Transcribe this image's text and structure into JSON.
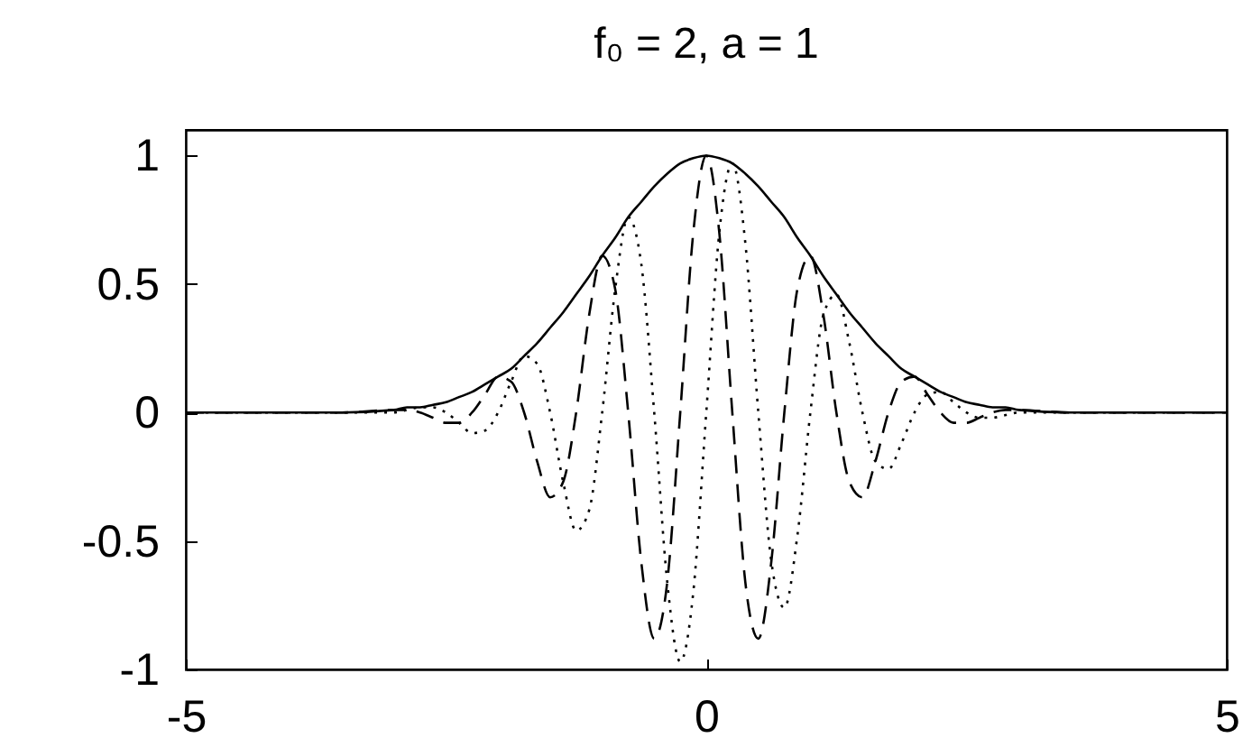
{
  "chart_data": {
    "type": "line",
    "title": "f₀ = 2, a = 1",
    "x": [
      -5,
      -4,
      -3.5,
      -3,
      -2.875,
      -2.75,
      -2.625,
      -2.5,
      -2.375,
      -2.25,
      -2.125,
      -2,
      -1.875,
      -1.75,
      -1.625,
      -1.5,
      -1.375,
      -1.25,
      -1.125,
      -1,
      -0.875,
      -0.75,
      -0.625,
      -0.5,
      -0.375,
      -0.25,
      -0.125,
      0,
      0.125,
      0.25,
      0.375,
      0.5,
      0.625,
      0.75,
      0.875,
      1,
      1.125,
      1.25,
      1.375,
      1.5,
      1.625,
      1.75,
      1.875,
      2,
      2.125,
      2.25,
      2.375,
      2.5,
      2.625,
      2.75,
      2.875,
      3,
      3.5,
      4,
      5
    ],
    "series": [
      {
        "color": "#000000",
        "line_style": "solid",
        "values": [
          0,
          0,
          0,
          0.01,
          0.02,
          0.02,
          0.03,
          0.04,
          0.06,
          0.08,
          0.11,
          0.14,
          0.17,
          0.22,
          0.27,
          0.33,
          0.39,
          0.46,
          0.53,
          0.61,
          0.68,
          0.76,
          0.82,
          0.88,
          0.93,
          0.97,
          0.99,
          1,
          0.99,
          0.97,
          0.93,
          0.88,
          0.82,
          0.76,
          0.68,
          0.61,
          0.53,
          0.46,
          0.39,
          0.33,
          0.27,
          0.22,
          0.17,
          0.14,
          0.11,
          0.08,
          0.06,
          0.04,
          0.03,
          0.02,
          0.02,
          0.01,
          0,
          0,
          0
        ]
      },
      {
        "color": "#000000",
        "line_style": "dashed",
        "values": [
          0,
          0,
          0,
          0.01,
          0.01,
          0,
          -0.02,
          -0.04,
          -0.04,
          0,
          0.07,
          0.14,
          0.12,
          0,
          -0.19,
          -0.33,
          -0.27,
          0,
          0.38,
          0.61,
          0.48,
          0,
          -0.58,
          -0.88,
          -0.66,
          0,
          0.7,
          1,
          0.7,
          0,
          -0.66,
          -0.88,
          -0.58,
          0,
          0.48,
          0.61,
          0.38,
          0,
          -0.27,
          -0.33,
          -0.19,
          0,
          0.12,
          0.14,
          0.07,
          0,
          -0.04,
          -0.04,
          -0.02,
          0,
          0.01,
          0.01,
          0,
          0,
          0
        ]
      },
      {
        "color": "#000000",
        "line_style": "dotted",
        "values": [
          0,
          0,
          0,
          0,
          0.01,
          0.02,
          0.02,
          0,
          -0.04,
          -0.08,
          -0.07,
          0,
          0.12,
          0.22,
          0.19,
          0,
          -0.27,
          -0.46,
          -0.38,
          0,
          0.48,
          0.76,
          0.58,
          0,
          -0.66,
          -0.97,
          -0.7,
          0,
          0.7,
          0.97,
          0.66,
          0,
          -0.58,
          -0.76,
          -0.48,
          0,
          0.38,
          0.46,
          0.27,
          0,
          -0.19,
          -0.22,
          -0.12,
          0,
          0.07,
          0.08,
          0.04,
          0,
          -0.02,
          -0.02,
          -0.01,
          0,
          0,
          0,
          0
        ]
      }
    ],
    "xlim": [
      -5,
      5
    ],
    "ylim": [
      -1,
      1.1
    ],
    "xticks": [
      -5,
      0,
      5
    ],
    "yticks": [
      -1,
      -0.5,
      0,
      0.5,
      1
    ]
  }
}
